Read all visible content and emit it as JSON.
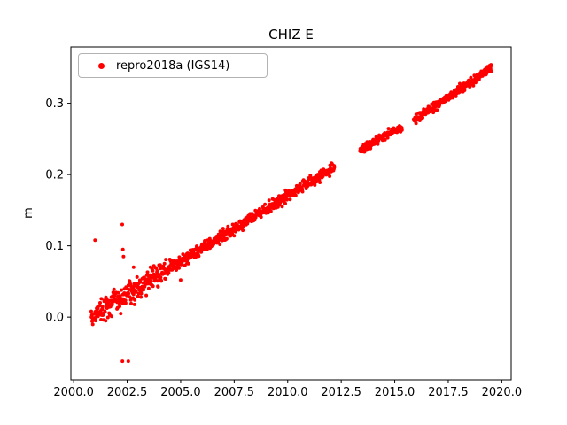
{
  "figure": {
    "background": "#ffffff"
  },
  "chart_data": {
    "type": "scatter",
    "title": "CHIZ E",
    "xlabel": "",
    "ylabel": "m",
    "grid": false,
    "legend": {
      "position": "upper left",
      "entries": [
        {
          "label": "repro2018a (IGS14)",
          "marker": "dot",
          "color": "#ff0000"
        }
      ]
    },
    "marker": {
      "color": "#ff0000",
      "radius": 2
    },
    "xlim": [
      1999.87,
      2020.44
    ],
    "ylim": [
      -0.088,
      0.379
    ],
    "x_ticks": [
      2000.0,
      2002.5,
      2005.0,
      2007.5,
      2010.0,
      2012.5,
      2015.0,
      2017.5,
      2020.0
    ],
    "x_tick_labels": [
      "2000.0",
      "2002.5",
      "2005.0",
      "2007.5",
      "2010.0",
      "2012.5",
      "2015.0",
      "2017.5",
      "2020.0"
    ],
    "y_ticks": [
      0.0,
      0.1,
      0.2,
      0.3
    ],
    "y_tick_labels": [
      "0.0",
      "0.1",
      "0.2",
      "0.3"
    ],
    "series": [
      {
        "name": "repro2018a (IGS14)",
        "trend_segments": [
          {
            "x_start": 2000.82,
            "x_end": 2012.18,
            "y_start": 0.001,
            "y_end": 0.21,
            "noise": 0.004
          },
          {
            "x_start": 2013.38,
            "x_end": 2015.34,
            "y_start": 0.234,
            "y_end": 0.268,
            "noise": 0.003
          },
          {
            "x_start": 2015.88,
            "x_end": 2019.52,
            "y_start": 0.2755,
            "y_end": 0.3495,
            "noise": 0.003
          }
        ],
        "sample_step_years": 0.014,
        "noise_boost_before_x": 2004.5,
        "noise_boost_factor": 1.9,
        "outliers": [
          [
            2001.0,
            0.108
          ],
          [
            2002.2,
            0.005
          ],
          [
            2002.27,
            0.13
          ],
          [
            2002.3,
            0.095
          ],
          [
            2002.33,
            0.085
          ],
          [
            2002.28,
            -0.062
          ],
          [
            2002.55,
            -0.062
          ],
          [
            2002.8,
            0.07
          ],
          [
            2003.45,
            0.063
          ],
          [
            2003.75,
            0.072
          ],
          [
            2005.0,
            0.052
          ],
          [
            2016.8,
            0.287
          ]
        ]
      }
    ]
  }
}
